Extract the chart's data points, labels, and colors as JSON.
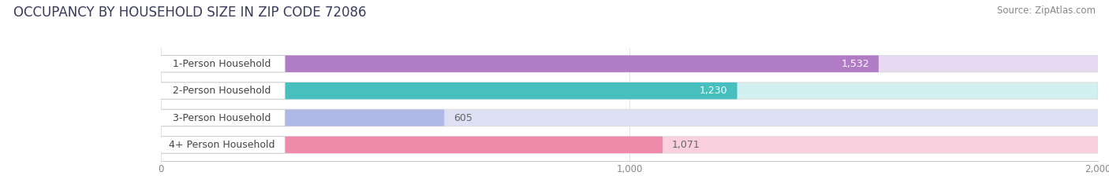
{
  "title": "OCCUPANCY BY HOUSEHOLD SIZE IN ZIP CODE 72086",
  "source": "Source: ZipAtlas.com",
  "categories": [
    "1-Person Household",
    "2-Person Household",
    "3-Person Household",
    "4+ Person Household"
  ],
  "values": [
    1532,
    1230,
    605,
    1071
  ],
  "bar_colors": [
    "#b07cc6",
    "#48bfbf",
    "#b0b8e8",
    "#f08aaa"
  ],
  "bar_bg_colors": [
    "#e8d8f2",
    "#d2f0f0",
    "#dde0f5",
    "#fad0de"
  ],
  "value_inside": [
    true,
    true,
    false,
    false
  ],
  "xlim": [
    0,
    2000
  ],
  "xticks": [
    0,
    1000,
    2000
  ],
  "background_color": "#ffffff",
  "bar_height": 0.62,
  "title_fontsize": 12,
  "source_fontsize": 8.5,
  "label_fontsize": 9,
  "value_fontsize": 9
}
